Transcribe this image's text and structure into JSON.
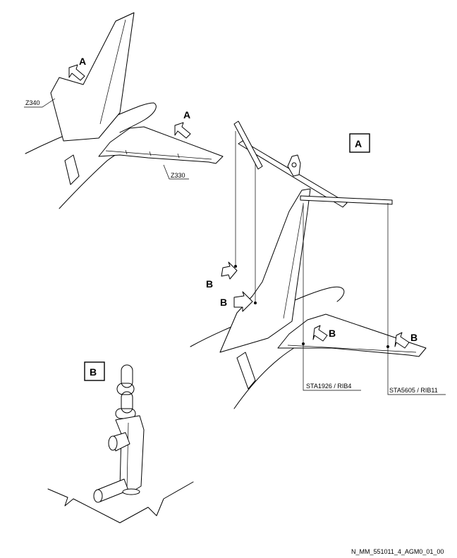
{
  "view_labels": {
    "arrow_a_fin": "A",
    "arrow_a_stab": "A",
    "detail_a": "A",
    "detail_b": "B",
    "arrow_b_1": "B",
    "arrow_b_2": "B",
    "arrow_b_3": "B",
    "arrow_b_4": "B"
  },
  "zone_labels": {
    "fin_zone": "Z340",
    "stab_zone": "Z330"
  },
  "station_labels": {
    "inboard": "STA1926 / RIB4",
    "outboard": "STA5605 / RIB11"
  },
  "drawing_ref": "N_MM_551011_4_AGM0_01_00"
}
